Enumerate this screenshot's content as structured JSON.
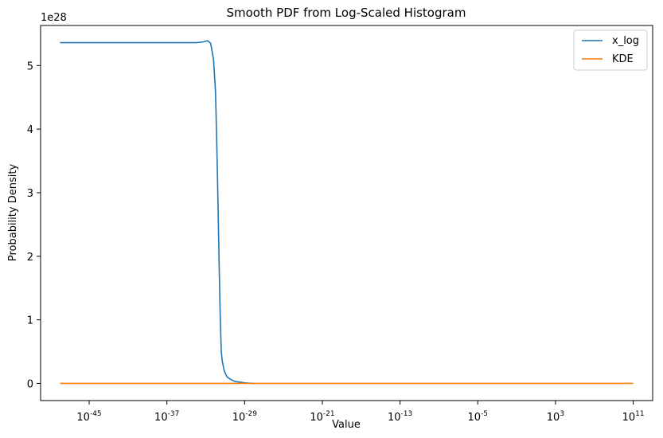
{
  "chart_data": {
    "type": "line",
    "title": "Smooth PDF from Log-Scaled Histogram",
    "xlabel": "Value",
    "ylabel": "Probability Density",
    "x_scale": "log",
    "xlim_exponent": [
      -50,
      13
    ],
    "ylim": [
      -0.27,
      5.63
    ],
    "y_offset_text": "1e28",
    "grid": false,
    "legend_position": "top-right",
    "x_ticks": [
      {
        "exponent": -45,
        "label": "-45"
      },
      {
        "exponent": -37,
        "label": "-37"
      },
      {
        "exponent": -29,
        "label": "-29"
      },
      {
        "exponent": -21,
        "label": "-21"
      },
      {
        "exponent": -13,
        "label": "-13"
      },
      {
        "exponent": -5,
        "label": "-5"
      },
      {
        "exponent": 3,
        "label": "3"
      },
      {
        "exponent": 11,
        "label": "11"
      }
    ],
    "x_tick_base": "10",
    "y_ticks": [
      {
        "value": 0,
        "label": "0"
      },
      {
        "value": 1,
        "label": "1"
      },
      {
        "value": 2,
        "label": "2"
      },
      {
        "value": 3,
        "label": "3"
      },
      {
        "value": 4,
        "label": "4"
      },
      {
        "value": 5,
        "label": "5"
      }
    ],
    "series": [
      {
        "name": "x_log",
        "color": "#1f77b4",
        "points": [
          [
            -48.0,
            5.36
          ],
          [
            -44.0,
            5.36
          ],
          [
            -40.0,
            5.36
          ],
          [
            -36.0,
            5.36
          ],
          [
            -34.0,
            5.36
          ],
          [
            -33.3,
            5.37
          ],
          [
            -32.8,
            5.39
          ],
          [
            -32.5,
            5.35
          ],
          [
            -32.2,
            5.1
          ],
          [
            -32.0,
            4.6
          ],
          [
            -31.9,
            4.0
          ],
          [
            -31.8,
            3.3
          ],
          [
            -31.7,
            2.5
          ],
          [
            -31.6,
            1.7
          ],
          [
            -31.5,
            1.0
          ],
          [
            -31.4,
            0.5
          ],
          [
            -31.3,
            0.35
          ],
          [
            -31.1,
            0.2
          ],
          [
            -30.8,
            0.1
          ],
          [
            -30.4,
            0.06
          ],
          [
            -30.0,
            0.03
          ],
          [
            -29.5,
            0.02
          ],
          [
            -29.0,
            0.01
          ],
          [
            -28.5,
            0.003
          ],
          [
            -28.0,
            0.0
          ]
        ]
      },
      {
        "name": "KDE",
        "color": "#ff7f0e",
        "points": [
          [
            -48.0,
            0.0
          ],
          [
            11.0,
            0.0
          ]
        ]
      }
    ]
  }
}
